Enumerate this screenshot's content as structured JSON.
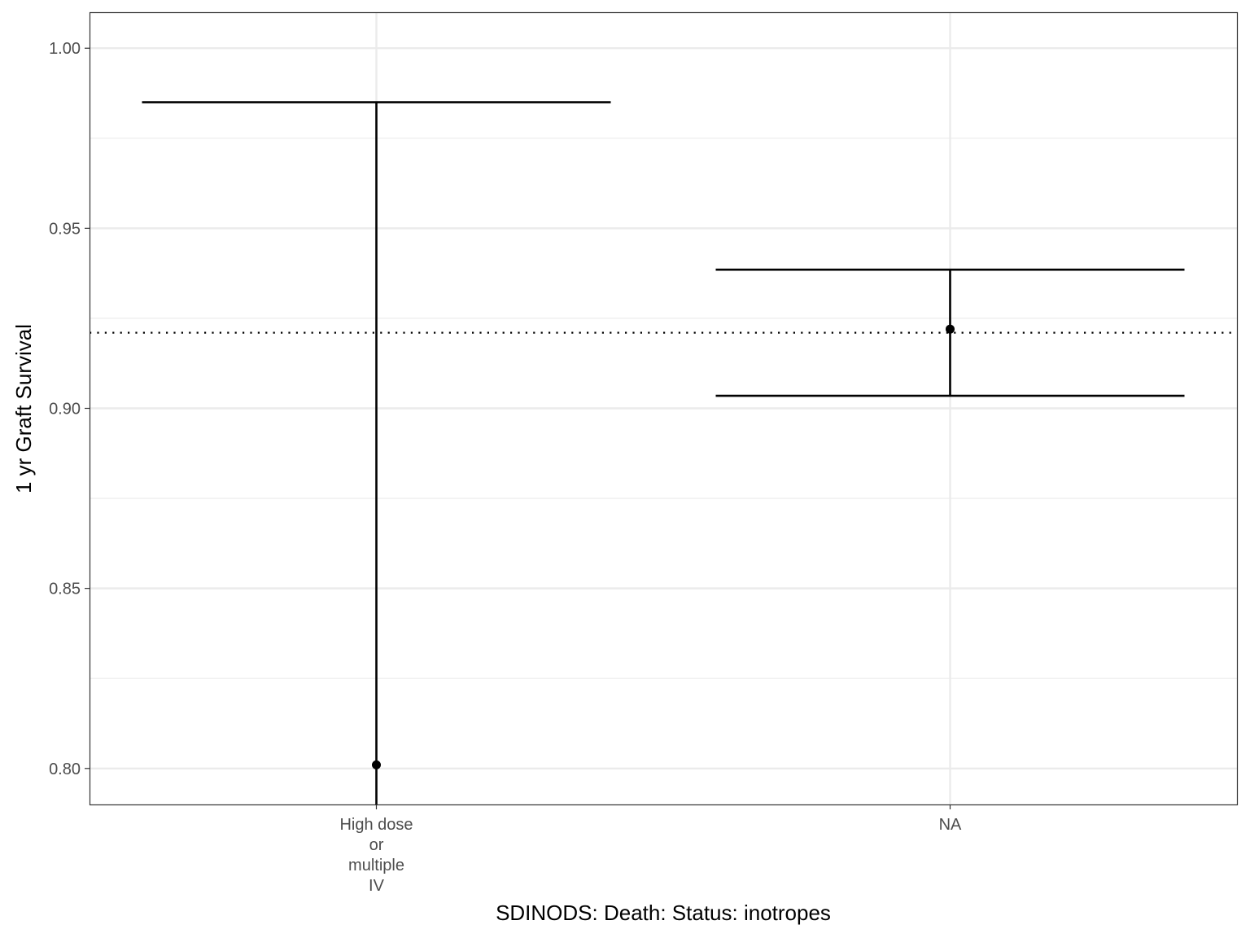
{
  "chart_data": {
    "type": "errorbar",
    "title": "",
    "xlabel": "SDINODS: Death: Status: inotropes",
    "ylabel": "1 yr Graft Survival",
    "categories": [
      [
        "High dose",
        "or",
        "multiple",
        "IV"
      ],
      [
        "NA"
      ]
    ],
    "points": [
      {
        "category_index": 0,
        "estimate": 0.801,
        "lower": 0.78,
        "upper": 0.985
      },
      {
        "category_index": 1,
        "estimate": 0.922,
        "lower": 0.9035,
        "upper": 0.9385
      }
    ],
    "reference_line": {
      "value": 0.921,
      "style": "dotted"
    },
    "ylim": [
      0.79,
      1.01
    ],
    "yticks": [
      0.8,
      0.85,
      0.9,
      0.95,
      1.0
    ],
    "ytick_labels": [
      "0.80",
      "0.85",
      "0.90",
      "0.95",
      "1.00"
    ],
    "grid": true,
    "legend": "none",
    "colors": {
      "mark": "#000000",
      "grid": "#ebebeb",
      "panel_border": "#333333",
      "tick_text": "#4d4d4d"
    }
  }
}
